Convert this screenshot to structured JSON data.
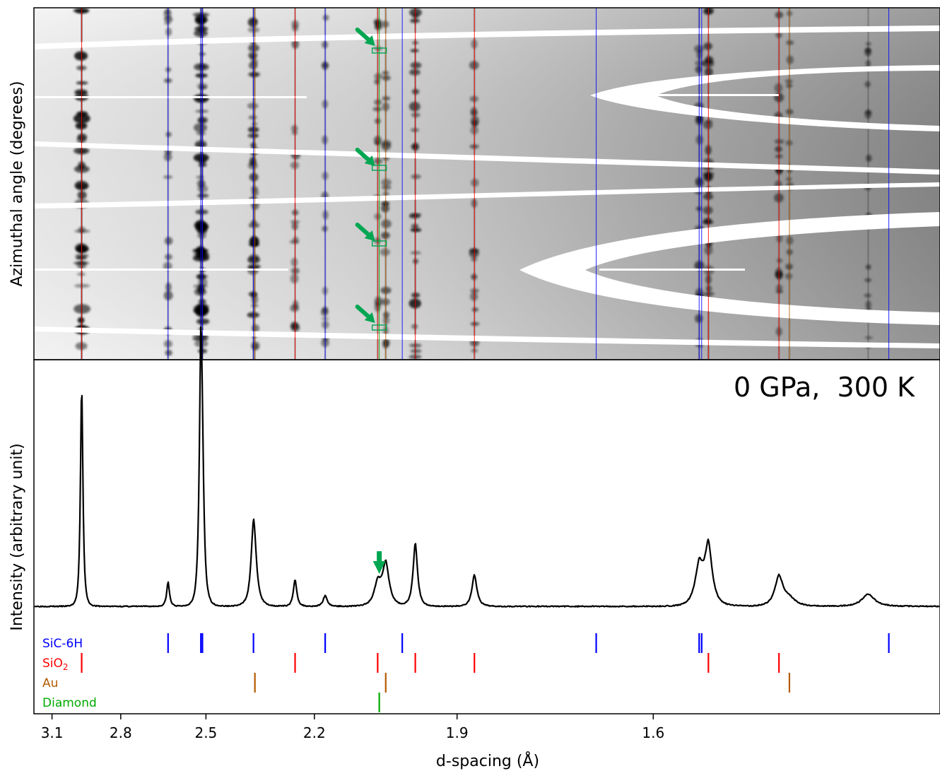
{
  "chart_data": [
    {
      "type": "heatmap",
      "description_panel": "azimuthal-unrolled diffraction image",
      "ylabel": "Azimuthal angle (degrees)",
      "x_domain": [
        3.19,
        1.3
      ],
      "arrow_marks_d": 2.0526,
      "phase_lines": [
        {
          "phase": "SiC-6H",
          "color": "#0000ff",
          "d": [
            2.625,
            2.516,
            2.511,
            2.359,
            2.174,
            2.005,
            1.677,
            1.543,
            1.54,
            1.345
          ]
        },
        {
          "phase": "SiO2",
          "color": "#ff0000",
          "d": [
            2.963,
            2.248,
            2.056,
            1.979,
            1.869,
            1.532,
            1.453
          ]
        },
        {
          "phase": "Au",
          "color": "#b35c00",
          "d": [
            2.355,
            2.039,
            1.442
          ]
        },
        {
          "phase": "Diamond",
          "color": "#00aa00",
          "d": [
            2.0526
          ]
        }
      ]
    },
    {
      "type": "line",
      "annotation": "0 GPa,  300 K",
      "xlabel": "d-spacing (Å)",
      "ylabel": "Intensity (arbitrary unit)",
      "x_ticks": [
        "3.1",
        "2.8",
        "2.5",
        "2.2",
        "1.9",
        "1.6"
      ],
      "x_tick_values": [
        3.1,
        2.8,
        2.5,
        2.2,
        1.9,
        1.6
      ],
      "x_domain": [
        3.19,
        1.3
      ],
      "y_domain": [
        0,
        1.0
      ],
      "baseline": 0.022,
      "peaks": [
        {
          "d": 2.963,
          "h": 0.92,
          "w": 0.01
        },
        {
          "d": 2.625,
          "h": 0.1,
          "w": 0.009
        },
        {
          "d": 2.516,
          "h": 0.98,
          "w": 0.009
        },
        {
          "d": 2.511,
          "h": 0.3,
          "w": 0.01
        },
        {
          "d": 2.359,
          "h": 0.3,
          "w": 0.012
        },
        {
          "d": 2.355,
          "h": 0.07,
          "w": 0.015
        },
        {
          "d": 2.248,
          "h": 0.11,
          "w": 0.008
        },
        {
          "d": 2.174,
          "h": 0.045,
          "w": 0.009
        },
        {
          "d": 2.056,
          "h": 0.09,
          "w": 0.014
        },
        {
          "d": 2.039,
          "h": 0.17,
          "w": 0.013
        },
        {
          "d": 1.979,
          "h": 0.26,
          "w": 0.008
        },
        {
          "d": 1.869,
          "h": 0.13,
          "w": 0.008
        },
        {
          "d": 1.543,
          "h": 0.16,
          "w": 0.009
        },
        {
          "d": 1.532,
          "h": 0.24,
          "w": 0.008
        },
        {
          "d": 1.453,
          "h": 0.12,
          "w": 0.008
        },
        {
          "d": 1.442,
          "h": 0.03,
          "w": 0.012
        },
        {
          "d": 1.364,
          "h": 0.05,
          "w": 0.011
        }
      ],
      "arrow_d": 2.0526,
      "phase_ticks": [
        {
          "label": "SiC-6H",
          "color": "#0000ff",
          "d": [
            2.625,
            2.516,
            2.511,
            2.359,
            2.174,
            2.005,
            1.677,
            1.543,
            1.54,
            1.345
          ]
        },
        {
          "label": "SiO",
          "label_sub": "2",
          "color": "#ff0000",
          "d": [
            2.963,
            2.248,
            2.056,
            1.979,
            1.869,
            1.532,
            1.453
          ]
        },
        {
          "label": "Au",
          "color": "#b35c00",
          "d": [
            2.355,
            2.039,
            1.442
          ]
        },
        {
          "label": "Diamond",
          "color": "#00aa00",
          "d": [
            2.0526
          ]
        }
      ]
    }
  ]
}
